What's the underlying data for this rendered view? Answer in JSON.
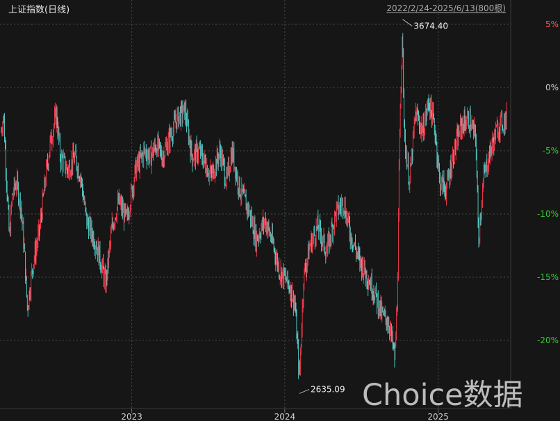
{
  "header": {
    "title": "上证指数(日线)",
    "range_label": "2022/2/24-2025/6/13(800根)"
  },
  "watermark": "Choice数据",
  "colors": {
    "background": "#161616",
    "up": "#ff3b4e",
    "down": "#56d5cf",
    "grid": "#4a4a4a",
    "positive_axis": "#ff5a5a",
    "neutral_axis": "#c8c8c8",
    "negative_axis": "#33cc33"
  },
  "chart_data": {
    "type": "candlestick",
    "title": "上证指数(日线)",
    "ylabel": "",
    "xlabel": "",
    "y_unit": "%",
    "ylim": [
      -22,
      6
    ],
    "y_ticks": [
      5,
      0,
      -5,
      -10,
      -15,
      -20
    ],
    "y_tick_labels": [
      "5%",
      "0%",
      "-5%",
      "-10%",
      "-15%",
      "-20%"
    ],
    "x_range": [
      "2022-02-24",
      "2025-06-13"
    ],
    "x_ticks": [
      {
        "label": "2023",
        "date": "2023-01-01"
      },
      {
        "label": "2024",
        "date": "2024-01-01"
      },
      {
        "label": "2025",
        "date": "2025-01-01"
      }
    ],
    "grid": true,
    "annotations": [
      {
        "label": "3674.40",
        "date": "2024-10-08",
        "pct": 5.4,
        "kind": "max"
      },
      {
        "label": "2635.09",
        "date": "2024-02-05",
        "pct": -24.2,
        "kind": "min"
      }
    ],
    "series": [
      {
        "values_pct_by_date": [
          [
            "2022-02-24",
            -3.5
          ],
          [
            "2022-03-01",
            -2.0
          ],
          [
            "2022-03-08",
            -7.0
          ],
          [
            "2022-03-15",
            -12.0
          ],
          [
            "2022-03-22",
            -8.5
          ],
          [
            "2022-04-01",
            -7.5
          ],
          [
            "2022-04-12",
            -9.5
          ],
          [
            "2022-04-20",
            -13.0
          ],
          [
            "2022-04-27",
            -17.5
          ],
          [
            "2022-05-10",
            -14.0
          ],
          [
            "2022-05-25",
            -11.5
          ],
          [
            "2022-06-10",
            -7.0
          ],
          [
            "2022-06-20",
            -4.5
          ],
          [
            "2022-07-05",
            -2.0
          ],
          [
            "2022-07-15",
            -5.5
          ],
          [
            "2022-08-01",
            -6.5
          ],
          [
            "2022-08-18",
            -5.5
          ],
          [
            "2022-09-01",
            -7.0
          ],
          [
            "2022-09-15",
            -10.5
          ],
          [
            "2022-10-10",
            -12.5
          ],
          [
            "2022-10-31",
            -15.5
          ],
          [
            "2022-11-15",
            -11.0
          ],
          [
            "2022-12-01",
            -9.0
          ],
          [
            "2022-12-20",
            -10.5
          ],
          [
            "2023-01-10",
            -6.5
          ],
          [
            "2023-02-01",
            -5.0
          ],
          [
            "2023-02-15",
            -5.5
          ],
          [
            "2023-03-01",
            -4.5
          ],
          [
            "2023-03-15",
            -5.5
          ],
          [
            "2023-04-01",
            -4.0
          ],
          [
            "2023-04-18",
            -2.5
          ],
          [
            "2023-05-08",
            -1.8
          ],
          [
            "2023-05-25",
            -5.5
          ],
          [
            "2023-06-10",
            -5.0
          ],
          [
            "2023-06-25",
            -6.0
          ],
          [
            "2023-07-10",
            -7.0
          ],
          [
            "2023-07-31",
            -5.0
          ],
          [
            "2023-08-15",
            -7.5
          ],
          [
            "2023-08-28",
            -5.0
          ],
          [
            "2023-09-15",
            -8.0
          ],
          [
            "2023-10-10",
            -10.0
          ],
          [
            "2023-10-25",
            -12.0
          ],
          [
            "2023-11-15",
            -10.5
          ],
          [
            "2023-12-01",
            -12.0
          ],
          [
            "2023-12-20",
            -14.5
          ],
          [
            "2024-01-10",
            -15.5
          ],
          [
            "2024-01-25",
            -17.0
          ],
          [
            "2024-02-05",
            -23.0
          ],
          [
            "2024-02-15",
            -15.0
          ],
          [
            "2024-03-01",
            -12.5
          ],
          [
            "2024-03-20",
            -11.0
          ],
          [
            "2024-04-10",
            -13.0
          ],
          [
            "2024-05-01",
            -10.0
          ],
          [
            "2024-05-20",
            -9.0
          ],
          [
            "2024-06-05",
            -11.5
          ],
          [
            "2024-06-25",
            -13.5
          ],
          [
            "2024-07-10",
            -14.5
          ],
          [
            "2024-07-31",
            -16.0
          ],
          [
            "2024-08-20",
            -18.0
          ],
          [
            "2024-09-05",
            -18.5
          ],
          [
            "2024-09-20",
            -21.5
          ],
          [
            "2024-09-26",
            -16.0
          ],
          [
            "2024-09-30",
            -6.0
          ],
          [
            "2024-10-08",
            5.4
          ],
          [
            "2024-10-12",
            -4.0
          ],
          [
            "2024-10-25",
            -7.5
          ],
          [
            "2024-11-08",
            -2.0
          ],
          [
            "2024-11-25",
            -3.5
          ],
          [
            "2024-12-10",
            -1.0
          ],
          [
            "2024-12-25",
            -3.5
          ],
          [
            "2025-01-05",
            -7.5
          ],
          [
            "2025-01-20",
            -8.0
          ],
          [
            "2025-02-05",
            -5.5
          ],
          [
            "2025-02-25",
            -3.0
          ],
          [
            "2025-03-15",
            -2.5
          ],
          [
            "2025-04-01",
            -4.0
          ],
          [
            "2025-04-07",
            -12.0
          ],
          [
            "2025-04-20",
            -7.0
          ],
          [
            "2025-05-10",
            -4.5
          ],
          [
            "2025-05-25",
            -3.0
          ],
          [
            "2025-06-13",
            -2.5
          ]
        ]
      }
    ]
  }
}
